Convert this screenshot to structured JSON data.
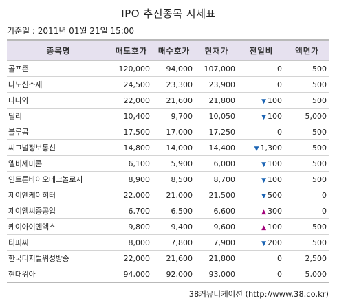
{
  "title": "IPO 추진종목 시세표",
  "base_date": "기준일 : 2011년 01월 21일 15:00",
  "columns": [
    "종목명",
    "매도호가",
    "매수호가",
    "현재가",
    "전일비",
    "액면가"
  ],
  "rows": [
    {
      "name": "골프존",
      "ask": "120,000",
      "bid": "94,000",
      "price": "107,000",
      "dir": "",
      "change": "0",
      "par": "500"
    },
    {
      "name": "나노신소재",
      "ask": "24,500",
      "bid": "23,300",
      "price": "23,900",
      "dir": "",
      "change": "0",
      "par": "500"
    },
    {
      "name": "다나와",
      "ask": "22,000",
      "bid": "21,600",
      "price": "21,800",
      "dir": "down",
      "change": "100",
      "par": "500"
    },
    {
      "name": "딜리",
      "ask": "10,400",
      "bid": "9,700",
      "price": "10,050",
      "dir": "down",
      "change": "100",
      "par": "5,000"
    },
    {
      "name": "블루콤",
      "ask": "17,500",
      "bid": "17,000",
      "price": "17,250",
      "dir": "",
      "change": "0",
      "par": "500"
    },
    {
      "name": "씨그널정보통신",
      "ask": "14,800",
      "bid": "14,000",
      "price": "14,400",
      "dir": "down",
      "change": "1,300",
      "par": "500"
    },
    {
      "name": "엘비세미콘",
      "ask": "6,100",
      "bid": "5,900",
      "price": "6,000",
      "dir": "down",
      "change": "100",
      "par": "500"
    },
    {
      "name": "인트론바이오테크놀로지",
      "ask": "8,900",
      "bid": "8,500",
      "price": "8,700",
      "dir": "down",
      "change": "100",
      "par": "500"
    },
    {
      "name": "제이엔케이히터",
      "ask": "22,000",
      "bid": "21,000",
      "price": "21,500",
      "dir": "down",
      "change": "500",
      "par": "0"
    },
    {
      "name": "제이엠씨중공업",
      "ask": "6,700",
      "bid": "6,500",
      "price": "6,600",
      "dir": "up",
      "change": "300",
      "par": "0"
    },
    {
      "name": "케이아이엔엑스",
      "ask": "9,800",
      "bid": "9,400",
      "price": "9,600",
      "dir": "up",
      "change": "100",
      "par": "500"
    },
    {
      "name": "티피씨",
      "ask": "8,000",
      "bid": "7,800",
      "price": "7,900",
      "dir": "down",
      "change": "200",
      "par": "500"
    },
    {
      "name": "한국디지털위성방송",
      "ask": "22,000",
      "bid": "21,600",
      "price": "21,800",
      "dir": "",
      "change": "0",
      "par": "2,500"
    },
    {
      "name": "현대위아",
      "ask": "94,000",
      "bid": "92,000",
      "price": "93,000",
      "dir": "",
      "change": "0",
      "par": "5,000"
    }
  ],
  "footer": "38커뮤니케이션 (http://www.38.co.kr)",
  "colors": {
    "header_bg": "#e6e1ef",
    "down": "#1b64b4",
    "up": "#a3007a"
  }
}
